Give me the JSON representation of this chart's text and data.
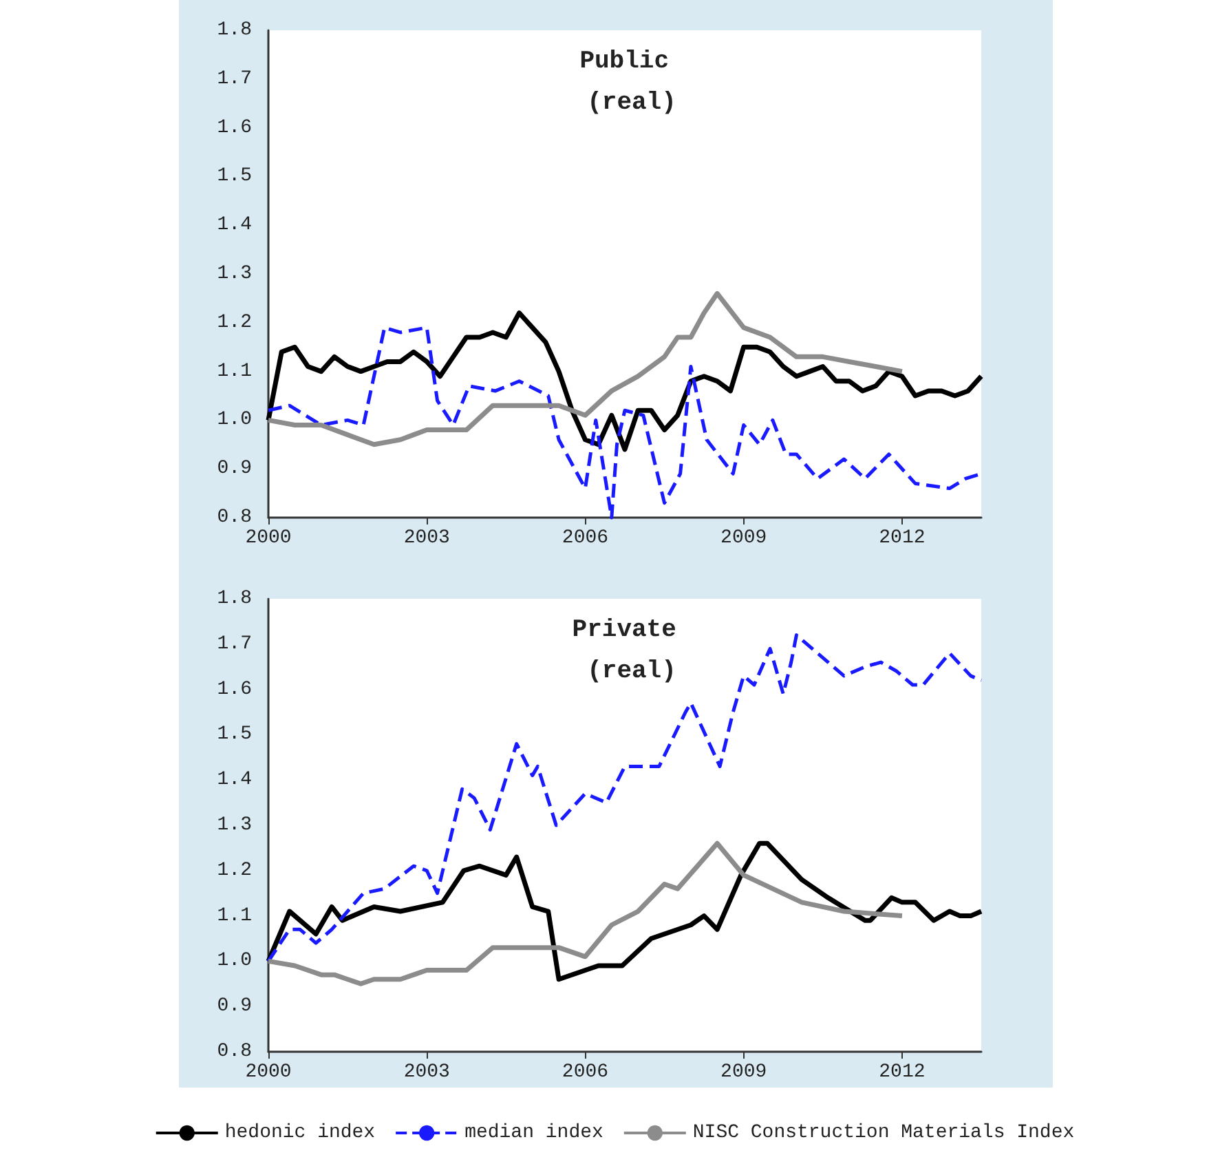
{
  "chart_data": [
    {
      "type": "line",
      "title": "Public (real)",
      "xlim": [
        2000,
        2013.5
      ],
      "xticks": [
        2000,
        2003,
        2006,
        2009,
        2012
      ],
      "ylim": [
        0.8,
        1.8
      ],
      "yticks": [
        0.8,
        0.9,
        {
          "value": 1,
          "label": "1.0"
        },
        1.1,
        1.2,
        1.3,
        1.4,
        1.5,
        1.6,
        1.7,
        1.8
      ],
      "grid": false,
      "marker": "none",
      "legend": false,
      "series": [
        {
          "color": "#000000",
          "line_style": "solid",
          "x": [
            2000,
            2000.25,
            2000.5,
            2000.75,
            2001,
            2001.25,
            2001.5,
            2001.75,
            2002,
            2002.25,
            2002.5,
            2002.75,
            2003,
            2003.25,
            2003.5,
            2003.75,
            2004,
            2004.25,
            2004.5,
            2004.75,
            2005,
            2005.25,
            2005.5,
            2005.75,
            2006,
            2006.25,
            2006.5,
            2006.75,
            2007,
            2007.25,
            2007.5,
            2007.75,
            2008,
            2008.25,
            2008.5,
            2008.75,
            2009,
            2009.25,
            2009.5,
            2009.75,
            2010,
            2010.25,
            2010.5,
            2010.75,
            2011,
            2011.25,
            2011.5,
            2011.75,
            2012,
            2012.25,
            2012.5,
            2012.75,
            2013,
            2013.25,
            2013.5
          ],
          "values": [
            1.0,
            1.14,
            1.15,
            1.11,
            1.1,
            1.13,
            1.11,
            1.1,
            1.11,
            1.12,
            1.12,
            1.14,
            1.12,
            1.09,
            1.13,
            1.17,
            1.17,
            1.18,
            1.17,
            1.22,
            1.19,
            1.16,
            1.1,
            1.02,
            0.96,
            0.95,
            1.01,
            0.94,
            1.02,
            1.02,
            0.98,
            1.01,
            1.08,
            1.09,
            1.08,
            1.06,
            1.15,
            1.15,
            1.14,
            1.11,
            1.09,
            1.1,
            1.11,
            1.08,
            1.08,
            1.06,
            1.07,
            1.1,
            1.09,
            1.05,
            1.06,
            1.06,
            1.05,
            1.06,
            1.09
          ]
        },
        {
          "color": "#1a1aff",
          "line_style": "dashed",
          "x": [
            2000,
            2000.4,
            2001,
            2001.5,
            2001.8,
            2002.2,
            2002.5,
            2003,
            2003.2,
            2003.5,
            2003.8,
            2004.3,
            2004.75,
            2005.3,
            2005.5,
            2006,
            2006.2,
            2006.5,
            2006.6,
            2006.75,
            2007.1,
            2007.5,
            2007.8,
            2008,
            2008.3,
            2008.8,
            2009,
            2009.3,
            2009.55,
            2009.8,
            2010,
            2010.4,
            2010.9,
            2011.3,
            2011.75,
            2012.25,
            2012.9,
            2013.2,
            2013.5
          ],
          "values": [
            1.02,
            1.03,
            0.99,
            1.0,
            0.99,
            1.19,
            1.18,
            1.19,
            1.04,
            0.99,
            1.07,
            1.06,
            1.08,
            1.05,
            0.96,
            0.86,
            1.0,
            0.8,
            0.95,
            1.02,
            1.01,
            0.83,
            0.89,
            1.11,
            0.96,
            0.89,
            0.99,
            0.95,
            1.0,
            0.93,
            0.93,
            0.88,
            0.92,
            0.88,
            0.93,
            0.87,
            0.86,
            0.88,
            0.89
          ]
        },
        {
          "color": "#8c8c8c",
          "line_style": "solid",
          "x": [
            2000,
            2000.5,
            2001,
            2001.5,
            2002,
            2002.5,
            2002.75,
            2003,
            2003.5,
            2003.75,
            2004.25,
            2004.75,
            2005.5,
            2006,
            2006.5,
            2007,
            2007.5,
            2007.75,
            2008,
            2008.25,
            2008.5,
            2009,
            2009.5,
            2010,
            2010.5,
            2011,
            2011.5,
            2012
          ],
          "values": [
            1.0,
            0.99,
            0.99,
            0.97,
            0.95,
            0.96,
            0.97,
            0.98,
            0.98,
            0.98,
            1.03,
            1.03,
            1.03,
            1.01,
            1.06,
            1.09,
            1.13,
            1.17,
            1.17,
            1.22,
            1.26,
            1.19,
            1.17,
            1.13,
            1.13,
            1.12,
            1.11,
            1.1
          ]
        }
      ]
    },
    {
      "type": "line",
      "title": "Private (real)",
      "xlim": [
        2000,
        2013.5
      ],
      "xticks": [
        2000,
        2003,
        2006,
        2009,
        2012
      ],
      "ylim": [
        0.8,
        1.8
      ],
      "yticks": [
        0.8,
        0.9,
        {
          "value": 1,
          "label": "1.0"
        },
        1.1,
        1.2,
        1.3,
        1.4,
        1.5,
        1.6,
        1.7,
        1.8
      ],
      "grid": false,
      "marker": "none",
      "legend": "bottom",
      "series": [
        {
          "name": "hedonic index",
          "color": "#000000",
          "line_style": "solid",
          "x": [
            2000,
            2000.4,
            2000.9,
            2001.2,
            2001.4,
            2002,
            2002.5,
            2003.3,
            2003.7,
            2004,
            2004.5,
            2004.7,
            2005,
            2005.3,
            2005.5,
            2006.25,
            2006.7,
            2007.25,
            2008,
            2008.25,
            2008.5,
            2008.95,
            2009.3,
            2009.45,
            2010.1,
            2010.6,
            2011.3,
            2011.4,
            2011.8,
            2012,
            2012.25,
            2012.6,
            2012.9,
            2013.1,
            2013.3,
            2013.5
          ],
          "values": [
            1.0,
            1.11,
            1.06,
            1.12,
            1.09,
            1.12,
            1.11,
            1.13,
            1.2,
            1.21,
            1.19,
            1.23,
            1.12,
            1.11,
            0.96,
            0.99,
            0.99,
            1.05,
            1.08,
            1.1,
            1.07,
            1.19,
            1.26,
            1.26,
            1.18,
            1.14,
            1.09,
            1.09,
            1.14,
            1.13,
            1.13,
            1.09,
            1.11,
            1.1,
            1.1,
            1.11
          ]
        },
        {
          "name": "median index",
          "color": "#1a1aff",
          "line_style": "dashed",
          "x": [
            2000,
            2000.4,
            2000.6,
            2000.9,
            2001.2,
            2001.8,
            2002.2,
            2002.75,
            2003,
            2003.2,
            2003.67,
            2003.9,
            2004.2,
            2004.7,
            2005,
            2005.1,
            2005.45,
            2006,
            2006.4,
            2006.75,
            2007.4,
            2007.9,
            2008,
            2008.55,
            2008.8,
            2009,
            2009.2,
            2009.5,
            2009.75,
            2009.9,
            2010,
            2010.4,
            2010.9,
            2011.3,
            2011.6,
            2011.9,
            2012.2,
            2012.4,
            2012.9,
            2013.3,
            2013.5
          ],
          "values": [
            1.0,
            1.07,
            1.07,
            1.04,
            1.07,
            1.15,
            1.16,
            1.21,
            1.2,
            1.15,
            1.38,
            1.36,
            1.29,
            1.48,
            1.41,
            1.43,
            1.3,
            1.37,
            1.35,
            1.43,
            1.43,
            1.55,
            1.57,
            1.43,
            1.55,
            1.63,
            1.61,
            1.69,
            1.59,
            1.66,
            1.72,
            1.68,
            1.63,
            1.65,
            1.66,
            1.64,
            1.61,
            1.61,
            1.68,
            1.63,
            1.62
          ]
        },
        {
          "name": "NISC Construction Materials Index",
          "color": "#8c8c8c",
          "line_style": "solid",
          "x": [
            2000,
            2000.5,
            2001,
            2001.25,
            2001.5,
            2001.75,
            2002,
            2002.5,
            2002.75,
            2003,
            2003.5,
            2003.75,
            2004.25,
            2004.75,
            2005.5,
            2006,
            2006.5,
            2007,
            2007.5,
            2007.75,
            2008.5,
            2009,
            2010.1,
            2010.9,
            2012
          ],
          "values": [
            1.0,
            0.99,
            0.97,
            0.97,
            0.96,
            0.95,
            0.96,
            0.96,
            0.97,
            0.98,
            0.98,
            0.98,
            1.03,
            1.03,
            1.03,
            1.01,
            1.08,
            1.11,
            1.17,
            1.16,
            1.26,
            1.19,
            1.13,
            1.11,
            1.1
          ]
        }
      ]
    }
  ]
}
